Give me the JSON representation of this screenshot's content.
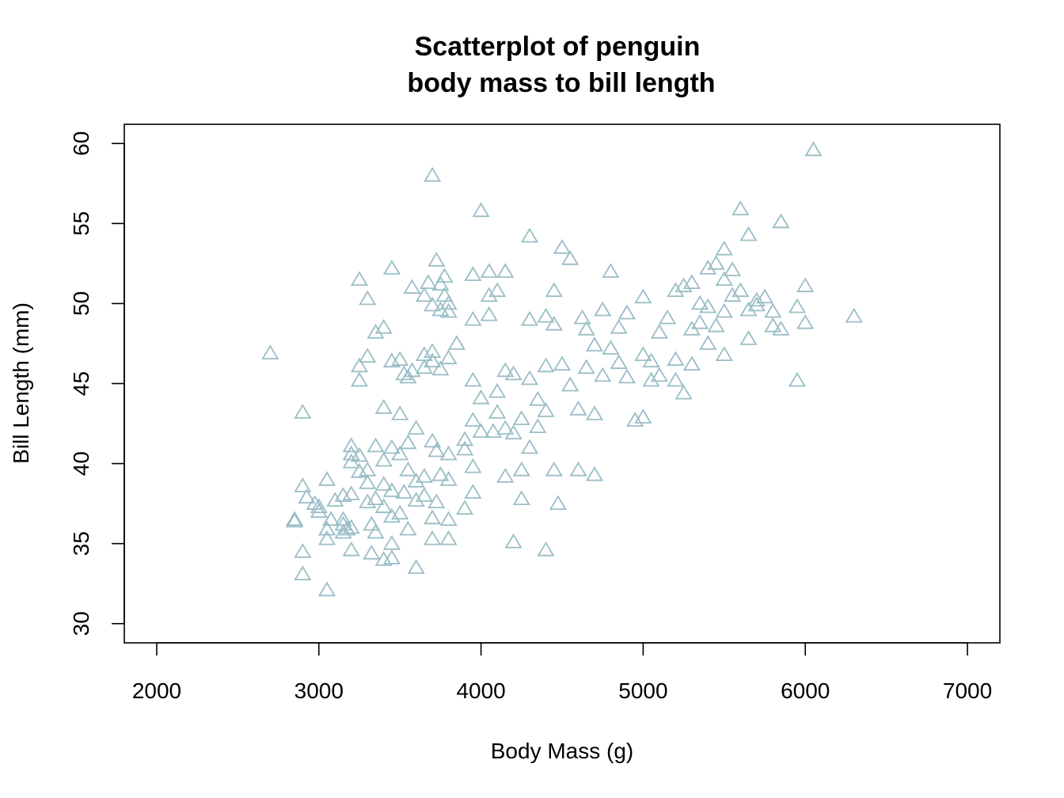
{
  "chart_data": {
    "type": "scatter",
    "title_lines": [
      "Scatterplot of penguin",
      "body mass to bill length"
    ],
    "xlabel": "Body Mass (g)",
    "ylabel": "Bill Length (mm)",
    "xlim": [
      1800,
      7200
    ],
    "ylim": [
      28.8,
      61.2
    ],
    "xticks": [
      2000,
      3000,
      4000,
      5000,
      6000,
      7000
    ],
    "yticks": [
      30,
      35,
      40,
      45,
      50,
      55,
      60
    ],
    "grid": false,
    "marker": "open-triangle",
    "point_color": "#9ABDC6",
    "series": [
      {
        "points": [
          [
            2700,
            46.9
          ],
          [
            2850,
            36.4
          ],
          [
            2850,
            36.5
          ],
          [
            2900,
            43.2
          ],
          [
            2900,
            38.6
          ],
          [
            2900,
            34.5
          ],
          [
            2900,
            33.1
          ],
          [
            2925,
            37.9
          ],
          [
            2975,
            37.5
          ],
          [
            3000,
            37.3
          ],
          [
            3000,
            37.0
          ],
          [
            3050,
            39.0
          ],
          [
            3050,
            35.9
          ],
          [
            3050,
            35.3
          ],
          [
            3050,
            32.1
          ],
          [
            3075,
            36.5
          ],
          [
            3100,
            37.7
          ],
          [
            3150,
            36.5
          ],
          [
            3150,
            36.2
          ],
          [
            3150,
            35.7
          ],
          [
            3150,
            38.0
          ],
          [
            3175,
            35.9
          ],
          [
            3200,
            41.1
          ],
          [
            3200,
            40.6
          ],
          [
            3200,
            40.1
          ],
          [
            3200,
            36.0
          ],
          [
            3200,
            34.6
          ],
          [
            3200,
            38.1
          ],
          [
            3250,
            51.5
          ],
          [
            3250,
            46.1
          ],
          [
            3250,
            45.2
          ],
          [
            3250,
            39.5
          ],
          [
            3250,
            40.5
          ],
          [
            3300,
            50.3
          ],
          [
            3300,
            46.7
          ],
          [
            3300,
            37.6
          ],
          [
            3300,
            39.6
          ],
          [
            3300,
            38.8
          ],
          [
            3325,
            36.2
          ],
          [
            3325,
            34.4
          ],
          [
            3350,
            48.2
          ],
          [
            3350,
            41.1
          ],
          [
            3350,
            37.8
          ],
          [
            3350,
            35.7
          ],
          [
            3400,
            48.5
          ],
          [
            3400,
            43.5
          ],
          [
            3400,
            40.2
          ],
          [
            3400,
            38.7
          ],
          [
            3400,
            37.3
          ],
          [
            3400,
            34.0
          ],
          [
            3450,
            52.2
          ],
          [
            3450,
            46.4
          ],
          [
            3450,
            41.0
          ],
          [
            3450,
            38.3
          ],
          [
            3450,
            36.7
          ],
          [
            3450,
            35.0
          ],
          [
            3450,
            34.1
          ],
          [
            3500,
            46.5
          ],
          [
            3500,
            43.1
          ],
          [
            3500,
            40.6
          ],
          [
            3500,
            36.9
          ],
          [
            3525,
            45.6
          ],
          [
            3525,
            38.2
          ],
          [
            3550,
            45.4
          ],
          [
            3550,
            41.3
          ],
          [
            3550,
            39.6
          ],
          [
            3550,
            35.9
          ],
          [
            3575,
            51.0
          ],
          [
            3575,
            45.8
          ],
          [
            3600,
            42.2
          ],
          [
            3600,
            38.9
          ],
          [
            3600,
            37.7
          ],
          [
            3600,
            33.5
          ],
          [
            3650,
            50.5
          ],
          [
            3650,
            46.8
          ],
          [
            3650,
            46.0
          ],
          [
            3650,
            39.2
          ],
          [
            3650,
            38.0
          ],
          [
            3675,
            51.3
          ],
          [
            3700,
            58.0
          ],
          [
            3700,
            49.9
          ],
          [
            3700,
            47.0
          ],
          [
            3700,
            46.4
          ],
          [
            3700,
            41.4
          ],
          [
            3700,
            36.6
          ],
          [
            3700,
            35.3
          ],
          [
            3725,
            52.7
          ],
          [
            3725,
            40.8
          ],
          [
            3725,
            37.6
          ],
          [
            3750,
            51.2
          ],
          [
            3750,
            49.6
          ],
          [
            3750,
            45.9
          ],
          [
            3750,
            39.3
          ],
          [
            3775,
            51.7
          ],
          [
            3775,
            50.5
          ],
          [
            3800,
            50.0
          ],
          [
            3800,
            49.5
          ],
          [
            3800,
            46.6
          ],
          [
            3800,
            40.6
          ],
          [
            3800,
            39.0
          ],
          [
            3800,
            36.5
          ],
          [
            3800,
            35.3
          ],
          [
            3850,
            47.5
          ],
          [
            3900,
            41.5
          ],
          [
            3900,
            40.9
          ],
          [
            3900,
            37.2
          ],
          [
            3950,
            51.8
          ],
          [
            3950,
            49.0
          ],
          [
            3950,
            45.2
          ],
          [
            3950,
            42.7
          ],
          [
            3950,
            39.8
          ],
          [
            3950,
            38.2
          ],
          [
            4000,
            55.8
          ],
          [
            4000,
            44.1
          ],
          [
            4000,
            42.0
          ],
          [
            4050,
            52.0
          ],
          [
            4050,
            50.5
          ],
          [
            4050,
            49.3
          ],
          [
            4075,
            42.0
          ],
          [
            4100,
            50.8
          ],
          [
            4100,
            44.5
          ],
          [
            4100,
            43.2
          ],
          [
            4150,
            52.0
          ],
          [
            4150,
            45.8
          ],
          [
            4150,
            42.2
          ],
          [
            4150,
            39.2
          ],
          [
            4200,
            45.6
          ],
          [
            4200,
            41.9
          ],
          [
            4200,
            35.1
          ],
          [
            4250,
            42.8
          ],
          [
            4250,
            39.6
          ],
          [
            4250,
            37.8
          ],
          [
            4300,
            54.2
          ],
          [
            4300,
            49.0
          ],
          [
            4300,
            45.3
          ],
          [
            4300,
            41.0
          ],
          [
            4350,
            44.0
          ],
          [
            4350,
            42.3
          ],
          [
            4400,
            49.2
          ],
          [
            4400,
            46.1
          ],
          [
            4400,
            43.3
          ],
          [
            4400,
            34.6
          ],
          [
            4450,
            50.8
          ],
          [
            4450,
            48.7
          ],
          [
            4450,
            39.6
          ],
          [
            4475,
            37.5
          ],
          [
            4500,
            53.5
          ],
          [
            4500,
            46.2
          ],
          [
            4550,
            52.8
          ],
          [
            4550,
            44.9
          ],
          [
            4600,
            43.4
          ],
          [
            4600,
            39.6
          ],
          [
            4625,
            49.1
          ],
          [
            4650,
            48.4
          ],
          [
            4650,
            46.0
          ],
          [
            4700,
            47.4
          ],
          [
            4700,
            43.1
          ],
          [
            4700,
            39.3
          ],
          [
            4750,
            49.6
          ],
          [
            4750,
            45.5
          ],
          [
            4800,
            52.0
          ],
          [
            4800,
            47.2
          ],
          [
            4850,
            48.5
          ],
          [
            4850,
            46.3
          ],
          [
            4900,
            49.4
          ],
          [
            4900,
            45.4
          ],
          [
            4950,
            42.7
          ],
          [
            5000,
            50.4
          ],
          [
            5000,
            46.8
          ],
          [
            5000,
            42.9
          ],
          [
            5050,
            46.4
          ],
          [
            5050,
            45.2
          ],
          [
            5100,
            48.2
          ],
          [
            5100,
            45.5
          ],
          [
            5150,
            49.1
          ],
          [
            5200,
            50.8
          ],
          [
            5200,
            46.5
          ],
          [
            5200,
            45.2
          ],
          [
            5250,
            51.1
          ],
          [
            5250,
            44.4
          ],
          [
            5300,
            51.3
          ],
          [
            5300,
            48.4
          ],
          [
            5300,
            46.2
          ],
          [
            5350,
            50.0
          ],
          [
            5350,
            48.8
          ],
          [
            5400,
            52.2
          ],
          [
            5400,
            49.8
          ],
          [
            5400,
            47.5
          ],
          [
            5450,
            52.5
          ],
          [
            5450,
            48.6
          ],
          [
            5500,
            53.4
          ],
          [
            5500,
            51.5
          ],
          [
            5500,
            49.5
          ],
          [
            5500,
            46.8
          ],
          [
            5550,
            52.1
          ],
          [
            5550,
            50.5
          ],
          [
            5600,
            55.9
          ],
          [
            5600,
            50.8
          ],
          [
            5650,
            54.3
          ],
          [
            5650,
            49.6
          ],
          [
            5650,
            47.8
          ],
          [
            5700,
            50.2
          ],
          [
            5700,
            49.9
          ],
          [
            5750,
            50.4
          ],
          [
            5800,
            49.5
          ],
          [
            5800,
            48.6
          ],
          [
            5850,
            55.1
          ],
          [
            5850,
            48.4
          ],
          [
            5950,
            49.8
          ],
          [
            5950,
            45.2
          ],
          [
            6000,
            51.1
          ],
          [
            6000,
            48.8
          ],
          [
            6050,
            59.6
          ],
          [
            6300,
            49.2
          ]
        ]
      }
    ]
  }
}
